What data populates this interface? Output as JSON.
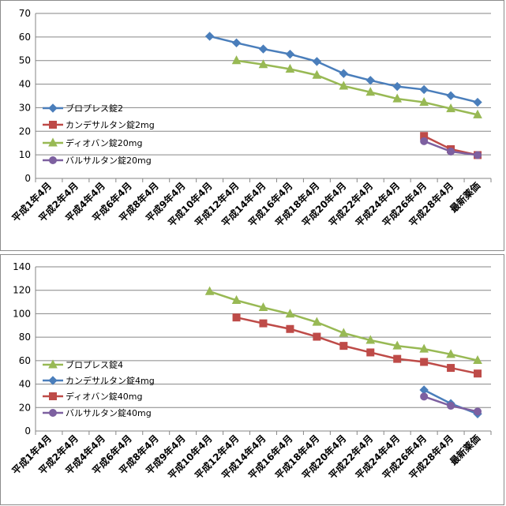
{
  "chart_data": [
    {
      "type": "line",
      "categories": [
        "平成1年4月",
        "平成2年4月",
        "平成4年4月",
        "平成6年4月",
        "平成8年4月",
        "平成9年4月",
        "平成10年4月",
        "平成12年4月",
        "平成14年4月",
        "平成16年4月",
        "平成18年4月",
        "平成20年4月",
        "平成22年4月",
        "平成24年4月",
        "平成26年4月",
        "平成28年4月",
        "最新薬価"
      ],
      "ylim": [
        0,
        70
      ],
      "yticks": [
        0,
        10,
        20,
        30,
        40,
        50,
        60,
        70
      ],
      "grid": true,
      "legend_position": "left",
      "series": [
        {
          "name": "ブロプレス錠2",
          "color": "#4a7ebb",
          "marker": "diamond",
          "values": [
            null,
            null,
            null,
            null,
            null,
            null,
            60.3,
            57.5,
            54.9,
            52.7,
            49.6,
            44.5,
            41.6,
            39.0,
            37.7,
            35.1,
            32.3
          ]
        },
        {
          "name": "カンデサルタン錠2mg",
          "color": "#be4b48",
          "marker": "square",
          "values": [
            null,
            null,
            null,
            null,
            null,
            null,
            null,
            null,
            null,
            null,
            null,
            null,
            null,
            null,
            18.0,
            12.4,
            9.9
          ]
        },
        {
          "name": "ディオバン錠20mg",
          "color": "#98b954",
          "marker": "triangle",
          "values": [
            null,
            null,
            null,
            null,
            null,
            null,
            null,
            50.0,
            48.3,
            46.4,
            43.8,
            39.2,
            36.6,
            33.8,
            32.3,
            29.6,
            27.0
          ]
        },
        {
          "name": "バルサルタン錠20mg",
          "color": "#7d60a0",
          "marker": "circle",
          "values": [
            null,
            null,
            null,
            null,
            null,
            null,
            null,
            null,
            null,
            null,
            null,
            null,
            null,
            null,
            15.8,
            11.4,
            9.9
          ]
        }
      ]
    },
    {
      "type": "line",
      "categories": [
        "平成1年4月",
        "平成2年4月",
        "平成4年4月",
        "平成6年4月",
        "平成8年4月",
        "平成9年4月",
        "平成10年4月",
        "平成12年4月",
        "平成14年4月",
        "平成16年4月",
        "平成18年4月",
        "平成20年4月",
        "平成22年4月",
        "平成24年4月",
        "平成26年4月",
        "平成28年4月",
        "最新薬価"
      ],
      "ylim": [
        0,
        140
      ],
      "yticks": [
        0,
        20,
        40,
        60,
        80,
        100,
        120,
        140
      ],
      "grid": true,
      "legend_position": "left",
      "series": [
        {
          "name": "ブロプレス錠4",
          "color": "#98b954",
          "marker": "triangle",
          "values": [
            null,
            null,
            null,
            null,
            null,
            null,
            119.0,
            111.4,
            105.3,
            99.8,
            92.8,
            83.5,
            77.4,
            72.6,
            69.9,
            65.4,
            60.2
          ]
        },
        {
          "name": "カンデサルタン錠4mg",
          "color": "#4a7ebb",
          "marker": "diamond",
          "values": [
            null,
            null,
            null,
            null,
            null,
            null,
            null,
            null,
            null,
            null,
            null,
            null,
            null,
            null,
            35.0,
            23.4,
            14.6
          ]
        },
        {
          "name": "ディオバン錠40mg",
          "color": "#be4b48",
          "marker": "square",
          "values": [
            null,
            null,
            null,
            null,
            null,
            null,
            null,
            96.8,
            91.8,
            87.0,
            80.4,
            72.6,
            67.0,
            61.5,
            58.9,
            53.8,
            49.0
          ]
        },
        {
          "name": "バルサルタン錠40mg",
          "color": "#7d60a0",
          "marker": "circle",
          "values": [
            null,
            null,
            null,
            null,
            null,
            null,
            null,
            null,
            null,
            null,
            null,
            null,
            null,
            null,
            29.4,
            21.5,
            16.6
          ]
        }
      ]
    }
  ]
}
